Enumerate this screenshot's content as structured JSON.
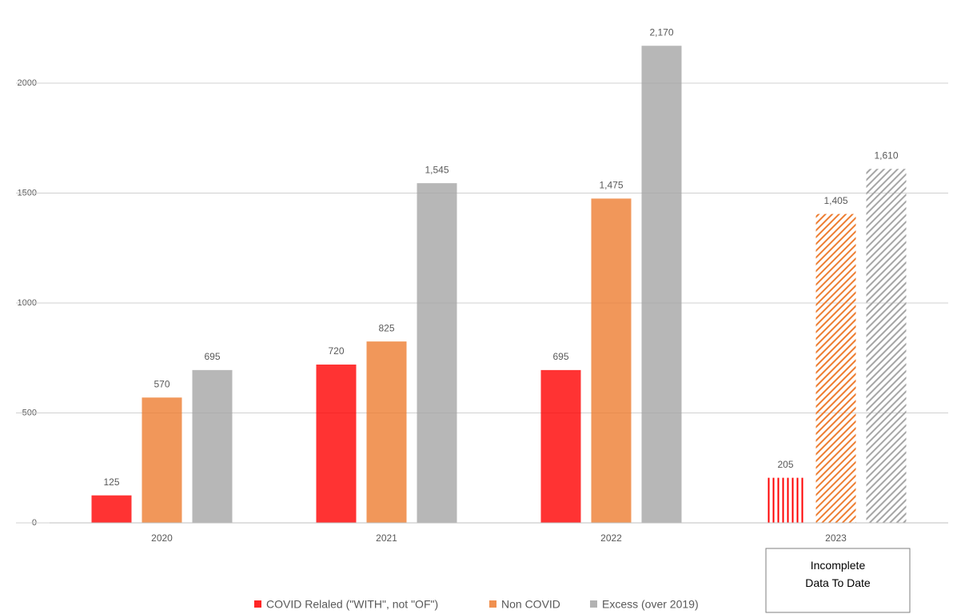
{
  "chart_data": {
    "type": "bar",
    "categories": [
      "2020",
      "2021",
      "2022",
      "2023"
    ],
    "series": [
      {
        "name": "COVID Relaled (\"WITH\", not \"OF\")",
        "color": "#ff0000",
        "values": [
          125,
          720,
          695,
          205
        ],
        "value_labels": [
          "125",
          "720",
          "695",
          "205"
        ]
      },
      {
        "name": "Non COVID",
        "color": "#ed7d31",
        "values": [
          570,
          825,
          1475,
          1405
        ],
        "value_labels": [
          "570",
          "825",
          "1,475",
          "1,405"
        ]
      },
      {
        "name": "Excess (over 2019)",
        "color": "#a5a5a5",
        "values": [
          695,
          1545,
          2170,
          1610
        ],
        "value_labels": [
          "695",
          "1,545",
          "2,170",
          "1,610"
        ]
      }
    ],
    "hatched": [
      false,
      false,
      false,
      true
    ],
    "annotation": "Incomplete Data To Date",
    "ylim": [
      0,
      2200
    ],
    "yticks": [
      0,
      500,
      1000,
      1500,
      2000
    ],
    "grid": true,
    "legend": "bottom"
  }
}
